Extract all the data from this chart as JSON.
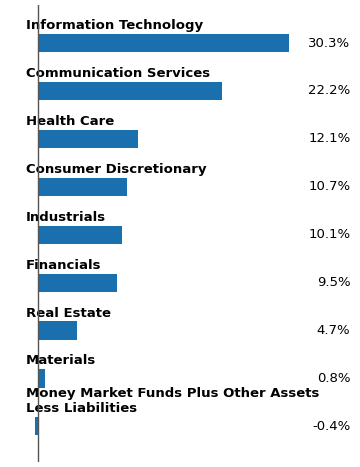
{
  "categories": [
    "Information Technology",
    "Communication Services",
    "Health Care",
    "Consumer Discretionary",
    "Industrials",
    "Financials",
    "Real Estate",
    "Materials",
    "Money Market Funds Plus Other Assets\nLess Liabilities"
  ],
  "values": [
    30.3,
    22.2,
    12.1,
    10.7,
    10.1,
    9.5,
    4.7,
    0.8,
    -0.4
  ],
  "bar_color": "#1a6faf",
  "label_color": "#000000",
  "background_color": "#ffffff",
  "bar_height": 0.38,
  "label_fontsize": 9.5,
  "value_fontsize": 9.5,
  "axis_line_color": "#555555",
  "xlim_max": 38
}
